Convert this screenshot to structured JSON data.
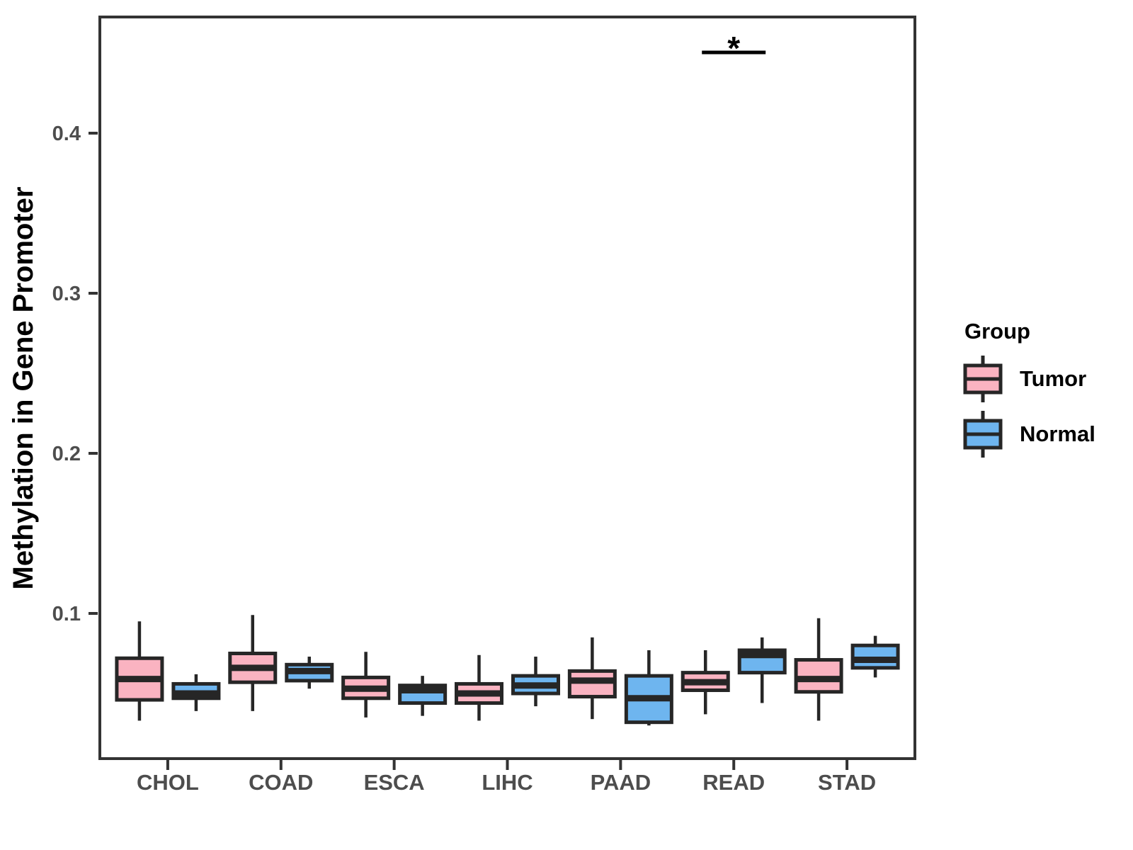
{
  "chart_data": {
    "type": "boxplot",
    "title": "",
    "xlabel": "",
    "ylabel": "Methylation in Gene Promoter",
    "categories": [
      "CHOL",
      "COAD",
      "ESCA",
      "LIHC",
      "PAAD",
      "READ",
      "STAD"
    ],
    "y_axis": {
      "ticks": [
        {
          "value": 0.1,
          "label": "0.1"
        },
        {
          "value": 0.2,
          "label": "0.2"
        },
        {
          "value": 0.3,
          "label": "0.3"
        },
        {
          "value": 0.4,
          "label": "0.4"
        }
      ],
      "range": [
        0.01,
        0.472
      ]
    },
    "grid": false,
    "legend_position": "right",
    "legend": {
      "title": "Group"
    },
    "box_stats_order": [
      "whisker_low",
      "q1",
      "median",
      "q3",
      "whisker_high"
    ],
    "series": [
      {
        "name": "Tumor",
        "fill": "#FAB3C1",
        "boxes": [
          {
            "whisker_low": 0.033,
            "q1": 0.046,
            "median": 0.059,
            "q3": 0.072,
            "whisker_high": 0.095
          },
          {
            "whisker_low": 0.039,
            "q1": 0.057,
            "median": 0.066,
            "q3": 0.075,
            "whisker_high": 0.099
          },
          {
            "whisker_low": 0.035,
            "q1": 0.047,
            "median": 0.053,
            "q3": 0.06,
            "whisker_high": 0.076
          },
          {
            "whisker_low": 0.033,
            "q1": 0.044,
            "median": 0.05,
            "q3": 0.056,
            "whisker_high": 0.074
          },
          {
            "whisker_low": 0.034,
            "q1": 0.048,
            "median": 0.058,
            "q3": 0.064,
            "whisker_high": 0.085
          },
          {
            "whisker_low": 0.037,
            "q1": 0.052,
            "median": 0.057,
            "q3": 0.063,
            "whisker_high": 0.077
          },
          {
            "whisker_low": 0.033,
            "q1": 0.051,
            "median": 0.059,
            "q3": 0.071,
            "whisker_high": 0.097
          }
        ]
      },
      {
        "name": "Normal",
        "fill": "#6EB5EF",
        "boxes": [
          {
            "whisker_low": 0.039,
            "q1": 0.047,
            "median": 0.05,
            "q3": 0.056,
            "whisker_high": 0.062
          },
          {
            "whisker_low": 0.053,
            "q1": 0.058,
            "median": 0.064,
            "q3": 0.068,
            "whisker_high": 0.073
          },
          {
            "whisker_low": 0.036,
            "q1": 0.044,
            "median": 0.052,
            "q3": 0.055,
            "whisker_high": 0.061
          },
          {
            "whisker_low": 0.042,
            "q1": 0.05,
            "median": 0.055,
            "q3": 0.061,
            "whisker_high": 0.073
          },
          {
            "whisker_low": 0.03,
            "q1": 0.032,
            "median": 0.047,
            "q3": 0.061,
            "whisker_high": 0.077
          },
          {
            "whisker_low": 0.044,
            "q1": 0.063,
            "median": 0.074,
            "q3": 0.077,
            "whisker_high": 0.085
          },
          {
            "whisker_low": 0.06,
            "q1": 0.066,
            "median": 0.071,
            "q3": 0.08,
            "whisker_high": 0.086
          }
        ]
      }
    ],
    "significance": {
      "category": "READ",
      "label": "*"
    }
  },
  "colors": {
    "tumor_fill": "#FAB3C1",
    "normal_fill": "#6EB5EF",
    "box_stroke": "#262626",
    "axis": "#333333",
    "tick_text": "#4D4D4D",
    "title_text": "#000000",
    "significance": "#000000",
    "background": "#FFFFFF"
  }
}
